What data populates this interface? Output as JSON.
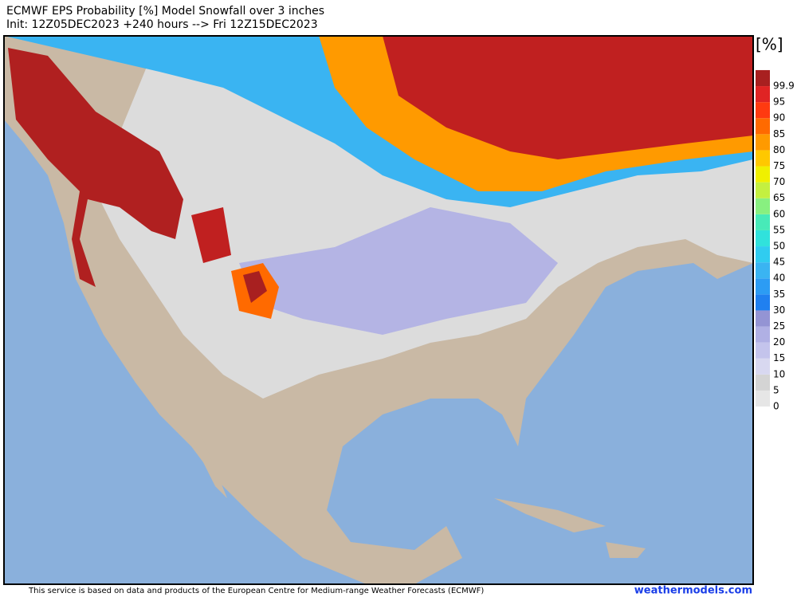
{
  "header": {
    "title": "ECMWF EPS Probability [%] Model Snowfall over 3 inches",
    "subtitle": "Init: 12Z05DEC2023 +240 hours --> Fri 12Z15DEC2023"
  },
  "legend": {
    "unit": "[%]",
    "ticks": [
      0,
      5,
      10,
      15,
      20,
      25,
      30,
      35,
      40,
      45,
      50,
      55,
      60,
      65,
      70,
      75,
      80,
      85,
      90,
      95,
      99.9
    ],
    "colors": [
      "#e6e6e6",
      "#d4d4d4",
      "#d8d8f0",
      "#c4c4ec",
      "#b0b0e4",
      "#9494d4",
      "#2080f0",
      "#2c9cf4",
      "#3ab4f2",
      "#30ccf0",
      "#30e2dc",
      "#48eab8",
      "#88f080",
      "#c4f040",
      "#f0f000",
      "#ffc800",
      "#ff9a00",
      "#ff6a00",
      "#ff3a10",
      "#e02424",
      "#a82020"
    ]
  },
  "footer": {
    "text": "This service is based on data and products of the European Centre for Medium-range Weather Forecasts (ECMWF)",
    "credit": "weathermodels.com"
  }
}
